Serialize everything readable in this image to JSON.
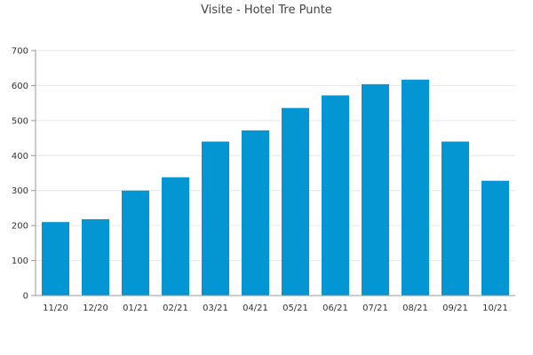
{
  "chart_data": {
    "type": "bar",
    "title": "Visite - Hotel Tre Punte",
    "xlabel": "",
    "ylabel": "",
    "categories": [
      "11/20",
      "12/20",
      "01/21",
      "02/21",
      "03/21",
      "04/21",
      "05/21",
      "06/21",
      "07/21",
      "08/21",
      "09/21",
      "10/21"
    ],
    "values": [
      210,
      218,
      300,
      338,
      440,
      472,
      536,
      572,
      604,
      617,
      440,
      328
    ],
    "ylim": [
      0,
      700
    ],
    "yticks": [
      0,
      100,
      200,
      300,
      400,
      500,
      600,
      700
    ],
    "grid": true,
    "legend": "none",
    "bar_color": "#0396d3",
    "grid_color": "#e6e6e6",
    "axis_color": "#999999"
  }
}
